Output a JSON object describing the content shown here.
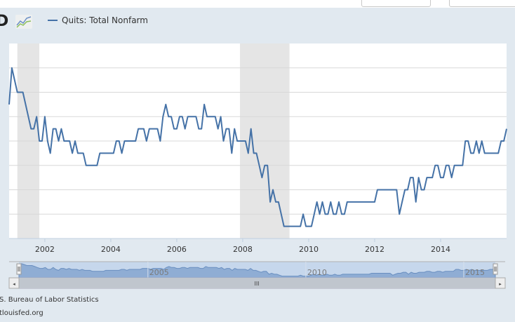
{
  "header": {
    "logo_text": "D",
    "legend_label": "Quits: Total Nonfarm"
  },
  "colors": {
    "series": "#4572a7",
    "recession": "#e5e5e5",
    "background": "#e1e9f0",
    "navigator_fill": "#8fadd4",
    "navigator_bg": "#c6d7ec"
  },
  "chart_data": {
    "type": "line",
    "title": "",
    "xlabel": "",
    "ylabel": "",
    "series": [
      {
        "name": "Quits: Total Nonfarm",
        "start": "2000-12",
        "frequency": "monthly",
        "values": [
          2.7,
          3.0,
          2.9,
          2.8,
          2.8,
          2.8,
          2.7,
          2.6,
          2.5,
          2.5,
          2.6,
          2.4,
          2.4,
          2.6,
          2.4,
          2.3,
          2.5,
          2.5,
          2.4,
          2.5,
          2.4,
          2.4,
          2.4,
          2.3,
          2.4,
          2.3,
          2.3,
          2.3,
          2.2,
          2.2,
          2.2,
          2.2,
          2.2,
          2.3,
          2.3,
          2.3,
          2.3,
          2.3,
          2.3,
          2.4,
          2.4,
          2.3,
          2.4,
          2.4,
          2.4,
          2.4,
          2.4,
          2.5,
          2.5,
          2.5,
          2.4,
          2.5,
          2.5,
          2.5,
          2.5,
          2.4,
          2.6,
          2.7,
          2.6,
          2.6,
          2.5,
          2.5,
          2.6,
          2.6,
          2.5,
          2.6,
          2.6,
          2.6,
          2.6,
          2.5,
          2.5,
          2.7,
          2.6,
          2.6,
          2.6,
          2.6,
          2.5,
          2.6,
          2.4,
          2.5,
          2.5,
          2.3,
          2.5,
          2.4,
          2.4,
          2.4,
          2.4,
          2.3,
          2.5,
          2.3,
          2.3,
          2.2,
          2.1,
          2.2,
          2.2,
          1.9,
          2.0,
          1.9,
          1.9,
          1.8,
          1.7,
          1.7,
          1.7,
          1.7,
          1.7,
          1.7,
          1.7,
          1.8,
          1.7,
          1.7,
          1.7,
          1.8,
          1.9,
          1.8,
          1.9,
          1.8,
          1.8,
          1.9,
          1.8,
          1.8,
          1.9,
          1.8,
          1.8,
          1.9,
          1.9,
          1.9,
          1.9,
          1.9,
          1.9,
          1.9,
          1.9,
          1.9,
          1.9,
          1.9,
          2.0,
          2.0,
          2.0,
          2.0,
          2.0,
          2.0,
          2.0,
          2.0,
          1.8,
          1.9,
          2.0,
          2.0,
          2.1,
          2.1,
          1.9,
          2.1,
          2.0,
          2.0,
          2.1,
          2.1,
          2.1,
          2.2,
          2.2,
          2.1,
          2.1,
          2.2,
          2.2,
          2.1,
          2.2,
          2.2,
          2.2,
          2.2,
          2.4,
          2.4,
          2.3,
          2.3,
          2.4,
          2.3,
          2.4,
          2.3,
          2.3,
          2.3,
          2.3,
          2.3,
          2.3,
          2.4,
          2.4,
          2.5
        ]
      }
    ],
    "ylim": [
      1.6,
      3.2
    ],
    "y_gridlines": [
      1.8,
      2.0,
      2.2,
      2.4,
      2.6,
      2.8,
      3.0
    ],
    "xlim": [
      2000.917,
      2016.0
    ],
    "x_ticks": [
      "2002",
      "2004",
      "2006",
      "2008",
      "2010",
      "2012",
      "2014"
    ],
    "recessions": [
      [
        2001.167,
        2001.833
      ],
      [
        2007.917,
        2009.417
      ]
    ],
    "navigator_ticks": [
      "2005",
      "2010",
      "2015"
    ],
    "legend_position": "top-left",
    "grid": true
  },
  "scrollbar": {
    "grip": "III",
    "left_arrow": "◂",
    "right_arrow": "▸"
  },
  "footer": {
    "source": "S. Bureau of Labor Statistics",
    "site": "tlouisfed.org"
  }
}
